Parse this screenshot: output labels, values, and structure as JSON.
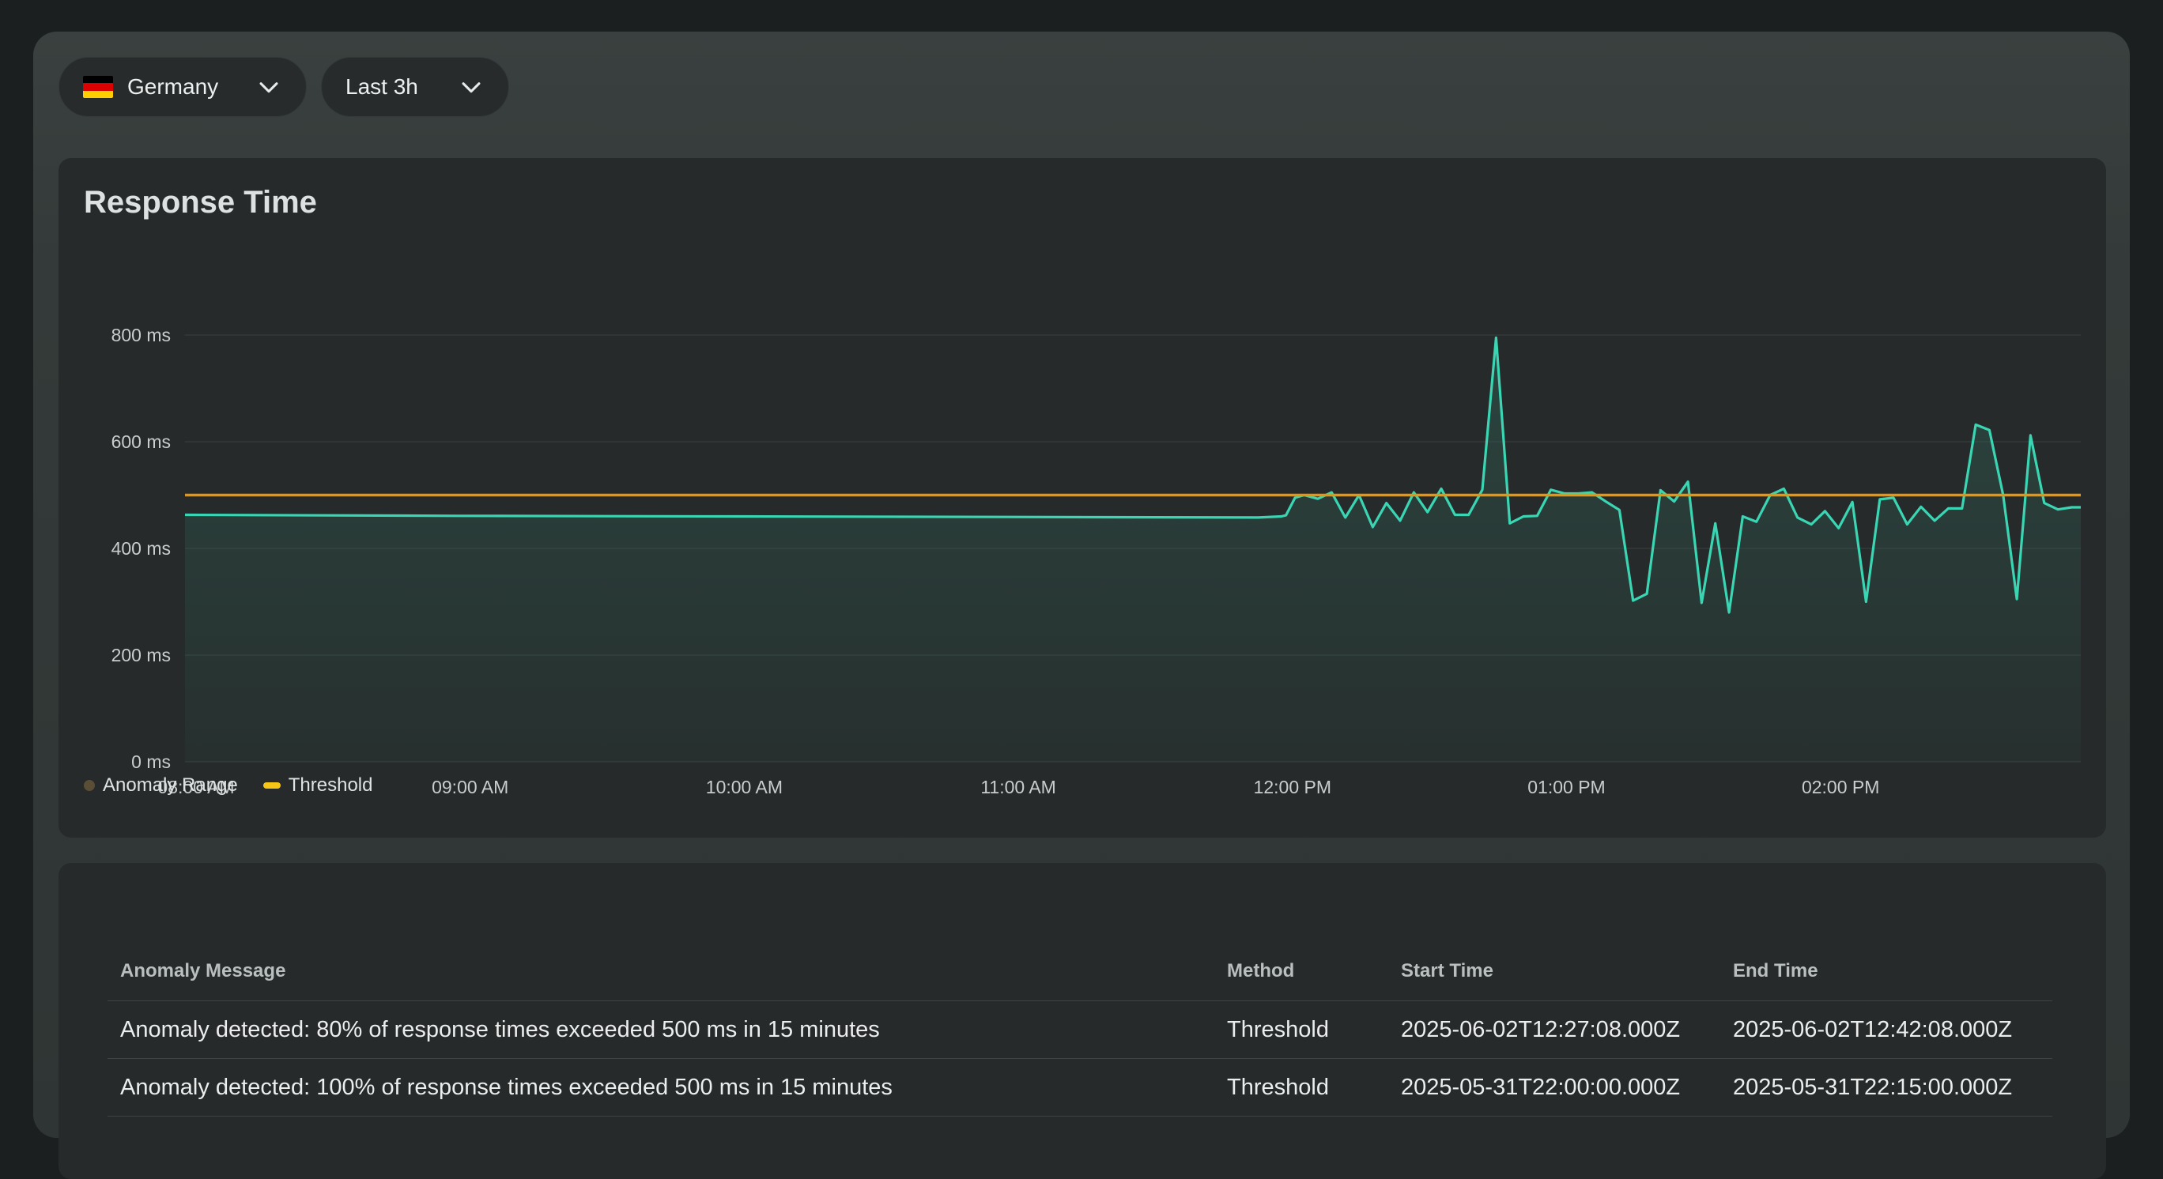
{
  "filters": {
    "country": {
      "label": "Germany",
      "flag_colors": [
        "#000000",
        "#dd0000",
        "#ffce00"
      ]
    },
    "time_range": {
      "label": "Last 3h"
    }
  },
  "chart": {
    "title": "Response Time",
    "legend": [
      {
        "label": "Anomaly Range",
        "color": "#5b4e37"
      },
      {
        "label": "Threshold",
        "color": "#f5c518"
      }
    ]
  },
  "chart_data": {
    "type": "line",
    "title": "Response Time",
    "x_start": "08:00",
    "x_end": "14:55",
    "x_ticks": [
      "08:00 AM",
      "09:00 AM",
      "10:00 AM",
      "11:00 AM",
      "12:00 PM",
      "01:00 PM",
      "02:00 PM"
    ],
    "y_ticks": [
      "0 ms",
      "200 ms",
      "400 ms",
      "600 ms",
      "800 ms"
    ],
    "ylim": [
      0,
      800
    ],
    "threshold": 500,
    "grid": true,
    "legend_position": "bottom-left",
    "colors": {
      "line": "#3ad6b4",
      "threshold": "#e8940f",
      "fill": "#2f5a50"
    },
    "series": [
      {
        "name": "",
        "points": [
          [
            "08:00",
            463
          ],
          [
            "09:00",
            461
          ],
          [
            "10:00",
            460
          ],
          [
            "11:00",
            459
          ],
          [
            "11:55",
            458
          ],
          [
            "12:00",
            460
          ],
          [
            "12:01",
            462
          ],
          [
            "12:03",
            495
          ],
          [
            "12:05",
            500
          ],
          [
            "12:08",
            493
          ],
          [
            "12:11",
            505
          ],
          [
            "12:14",
            458
          ],
          [
            "12:17",
            500
          ],
          [
            "12:20",
            440
          ],
          [
            "12:23",
            485
          ],
          [
            "12:26",
            452
          ],
          [
            "12:29",
            505
          ],
          [
            "12:32",
            468
          ],
          [
            "12:35",
            512
          ],
          [
            "12:38",
            463
          ],
          [
            "12:41",
            463
          ],
          [
            "12:44",
            510
          ],
          [
            "12:47",
            795
          ],
          [
            "12:50",
            447
          ],
          [
            "12:53",
            460
          ],
          [
            "12:56",
            461
          ],
          [
            "12:59",
            510
          ],
          [
            "13:02",
            503
          ],
          [
            "13:05",
            503
          ],
          [
            "13:08",
            505
          ],
          [
            "13:11",
            488
          ],
          [
            "13:14",
            472
          ],
          [
            "13:17",
            302
          ],
          [
            "13:20",
            315
          ],
          [
            "13:23",
            509
          ],
          [
            "13:26",
            488
          ],
          [
            "13:29",
            525
          ],
          [
            "13:32",
            298
          ],
          [
            "13:35",
            447
          ],
          [
            "13:38",
            280
          ],
          [
            "13:41",
            460
          ],
          [
            "13:44",
            450
          ],
          [
            "13:47",
            500
          ],
          [
            "13:50",
            512
          ],
          [
            "13:53",
            458
          ],
          [
            "13:56",
            445
          ],
          [
            "13:59",
            470
          ],
          [
            "14:02",
            438
          ],
          [
            "14:05",
            487
          ],
          [
            "14:08",
            300
          ],
          [
            "14:11",
            492
          ],
          [
            "14:14",
            495
          ],
          [
            "14:17",
            445
          ],
          [
            "14:20",
            478
          ],
          [
            "14:23",
            452
          ],
          [
            "14:26",
            475
          ],
          [
            "14:29",
            475
          ],
          [
            "14:32",
            632
          ],
          [
            "14:35",
            622
          ],
          [
            "14:38",
            500
          ],
          [
            "14:41",
            305
          ],
          [
            "14:44",
            612
          ],
          [
            "14:47",
            485
          ],
          [
            "14:50",
            473
          ],
          [
            "14:53",
            477
          ],
          [
            "14:55",
            477
          ]
        ]
      }
    ]
  },
  "table": {
    "columns": [
      "Anomaly Message",
      "Method",
      "Start Time",
      "End Time"
    ],
    "rows": [
      [
        "Anomaly detected: 80% of response times exceeded 500 ms in 15 minutes",
        "Threshold",
        "2025-06-02T12:27:08.000Z",
        "2025-06-02T12:42:08.000Z"
      ],
      [
        "Anomaly detected: 100% of response times exceeded 500 ms in 15 minutes",
        "Threshold",
        "2025-05-31T22:00:00.000Z",
        "2025-05-31T22:15:00.000Z"
      ]
    ]
  }
}
